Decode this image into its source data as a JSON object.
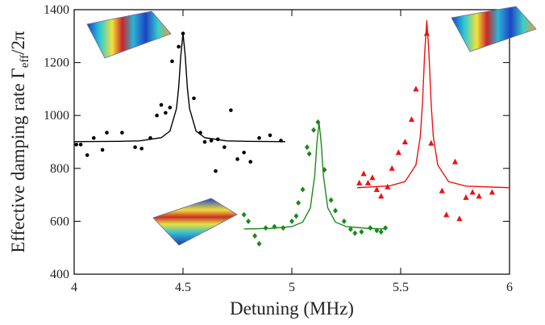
{
  "chart_data": {
    "type": "scatter",
    "xlabel": "Detuning (MHz)",
    "ylabel": [
      "Effective damping rate Γ",
      "eff",
      "/2π"
    ],
    "xlim": [
      4,
      6
    ],
    "xticks": [
      4,
      4.5,
      5,
      5.5,
      6
    ],
    "ylim": [
      400,
      1400
    ],
    "yticks": [
      400,
      600,
      800,
      1000,
      1200,
      1400
    ],
    "series": [
      {
        "color": "#000000",
        "marker": "circle",
        "x": [
          4.01,
          4.03,
          4.06,
          4.09,
          4.13,
          4.15,
          4.22,
          4.28,
          4.31,
          4.35,
          4.38,
          4.4,
          4.42,
          4.44,
          4.45,
          4.48,
          4.5,
          4.55,
          4.58,
          4.6,
          4.63,
          4.65,
          4.66,
          4.69,
          4.72,
          4.75,
          4.78,
          4.81,
          4.85,
          4.9,
          4.95
        ],
        "values": [
          890,
          890,
          850,
          915,
          870,
          935,
          935,
          880,
          875,
          915,
          1000,
          1040,
          1010,
          1030,
          1205,
          1260,
          1310,
          1065,
          935,
          900,
          905,
          790,
          910,
          880,
          1020,
          835,
          860,
          825,
          915,
          925,
          905
        ],
        "fit_x": [
          4.0,
          4.2,
          4.3,
          4.4,
          4.44,
          4.47,
          4.48,
          4.49,
          4.5,
          4.51,
          4.52,
          4.53,
          4.56,
          4.6,
          4.7,
          4.8,
          4.97
        ],
        "fit_values": [
          901,
          902,
          904,
          916,
          941,
          1026,
          1105,
          1228,
          1310,
          1228,
          1105,
          1026,
          941,
          916,
          904,
          902,
          901
        ]
      },
      {
        "color": "#1a8a1a",
        "marker": "diamond",
        "x": [
          4.78,
          4.8,
          4.83,
          4.85,
          4.88,
          4.92,
          4.96,
          5.0,
          5.02,
          5.03,
          5.05,
          5.07,
          5.08,
          5.1,
          5.12,
          5.15,
          5.18,
          5.2,
          5.24,
          5.27,
          5.29,
          5.32,
          5.36,
          5.39,
          5.41,
          5.43
        ],
        "values": [
          625,
          600,
          545,
          515,
          575,
          580,
          575,
          600,
          620,
          670,
          720,
          880,
          855,
          945,
          975,
          795,
          680,
          640,
          600,
          570,
          555,
          560,
          575,
          565,
          560,
          575
        ],
        "fit_x": [
          4.78,
          4.9,
          5.0,
          5.05,
          5.085,
          5.105,
          5.115,
          5.125,
          5.135,
          5.145,
          5.165,
          5.2,
          5.25,
          5.35,
          5.43
        ],
        "fit_values": [
          571,
          573,
          580,
          597,
          651,
          772,
          894,
          975,
          894,
          772,
          651,
          597,
          580,
          573,
          571
        ]
      },
      {
        "color": "#ee1111",
        "marker": "triangle",
        "x": [
          5.31,
          5.33,
          5.35,
          5.37,
          5.39,
          5.41,
          5.44,
          5.46,
          5.49,
          5.52,
          5.55,
          5.57,
          5.62,
          5.64,
          5.69,
          5.71,
          5.75,
          5.77,
          5.8,
          5.83,
          5.86,
          5.92
        ],
        "values": [
          745,
          780,
          745,
          765,
          720,
          695,
          730,
          800,
          860,
          900,
          985,
          1100,
          1310,
          895,
          715,
          625,
          825,
          610,
          690,
          710,
          695,
          710
        ],
        "fit_x": [
          5.3,
          5.45,
          5.52,
          5.57,
          5.59,
          5.6,
          5.61,
          5.62,
          5.63,
          5.64,
          5.65,
          5.67,
          5.72,
          5.8,
          6.0
        ],
        "fit_values": [
          727,
          734,
          750,
          813,
          920,
          1043,
          1233,
          1360,
          1233,
          1043,
          920,
          813,
          750,
          733,
          727
        ]
      }
    ]
  }
}
